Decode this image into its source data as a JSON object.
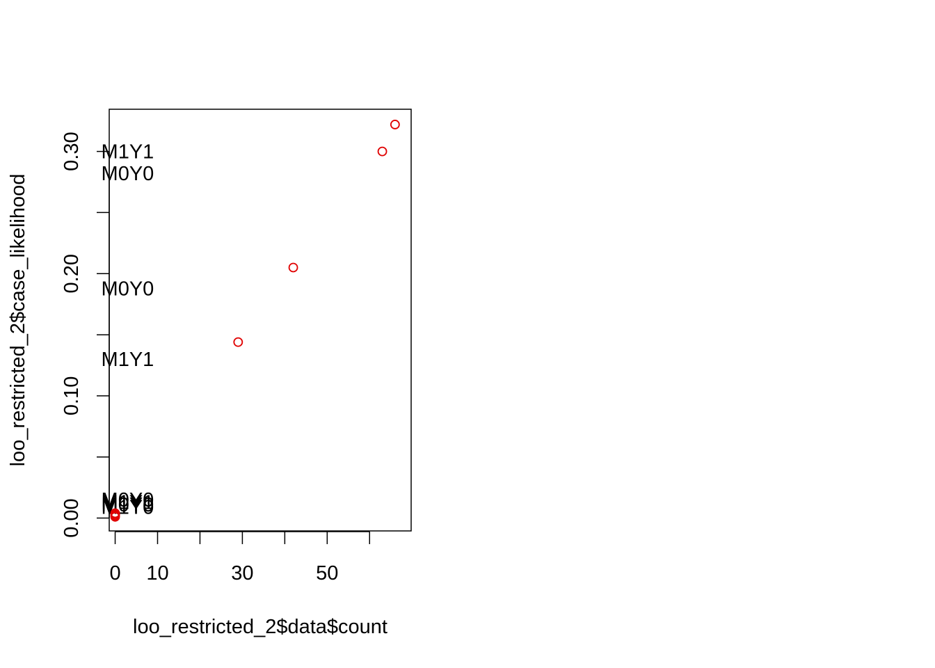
{
  "chart_data": {
    "type": "scatter",
    "title": "",
    "xlabel": "loo_restricted_2$data$count",
    "ylabel": "loo_restricted_2$case_likelihood",
    "xlim": [
      -1.4,
      69.8
    ],
    "ylim": [
      -0.0105,
      0.3345
    ],
    "x_ticks": [
      0,
      10,
      20,
      30,
      40,
      50,
      60
    ],
    "x_tick_labels": [
      "0",
      "10",
      "",
      "30",
      "",
      "50",
      ""
    ],
    "y_ticks": [
      0.0,
      0.05,
      0.1,
      0.15,
      0.2,
      0.25,
      0.3
    ],
    "y_tick_labels": [
      "0.00",
      "",
      "0.10",
      "",
      "0.20",
      "",
      "0.30"
    ],
    "grid": false,
    "point_color": "#e00000",
    "points": [
      {
        "x": 66,
        "y": 0.322
      },
      {
        "x": 63,
        "y": 0.3
      },
      {
        "x": 42,
        "y": 0.205
      },
      {
        "x": 29,
        "y": 0.144
      },
      {
        "x": 0,
        "y": 0.004
      },
      {
        "x": 0,
        "y": 0.003
      },
      {
        "x": 0,
        "y": 0.002
      },
      {
        "x": 0,
        "y": 0.001
      }
    ],
    "annotations": [
      {
        "text": "M1Y1",
        "x": 0,
        "y": 0.3
      },
      {
        "text": "M0Y0",
        "x": 0,
        "y": 0.282
      },
      {
        "text": "M0Y0",
        "x": 0,
        "y": 0.188
      },
      {
        "text": "M1Y1",
        "x": 0,
        "y": 0.13
      },
      {
        "text": "M0Y0",
        "x": 0,
        "y": 0.015
      },
      {
        "text": "M1Y1",
        "x": 0,
        "y": 0.013
      },
      {
        "text": "M0Y0",
        "x": 0,
        "y": 0.011
      },
      {
        "text": "M1Y0",
        "x": 0,
        "y": 0.009
      }
    ]
  }
}
